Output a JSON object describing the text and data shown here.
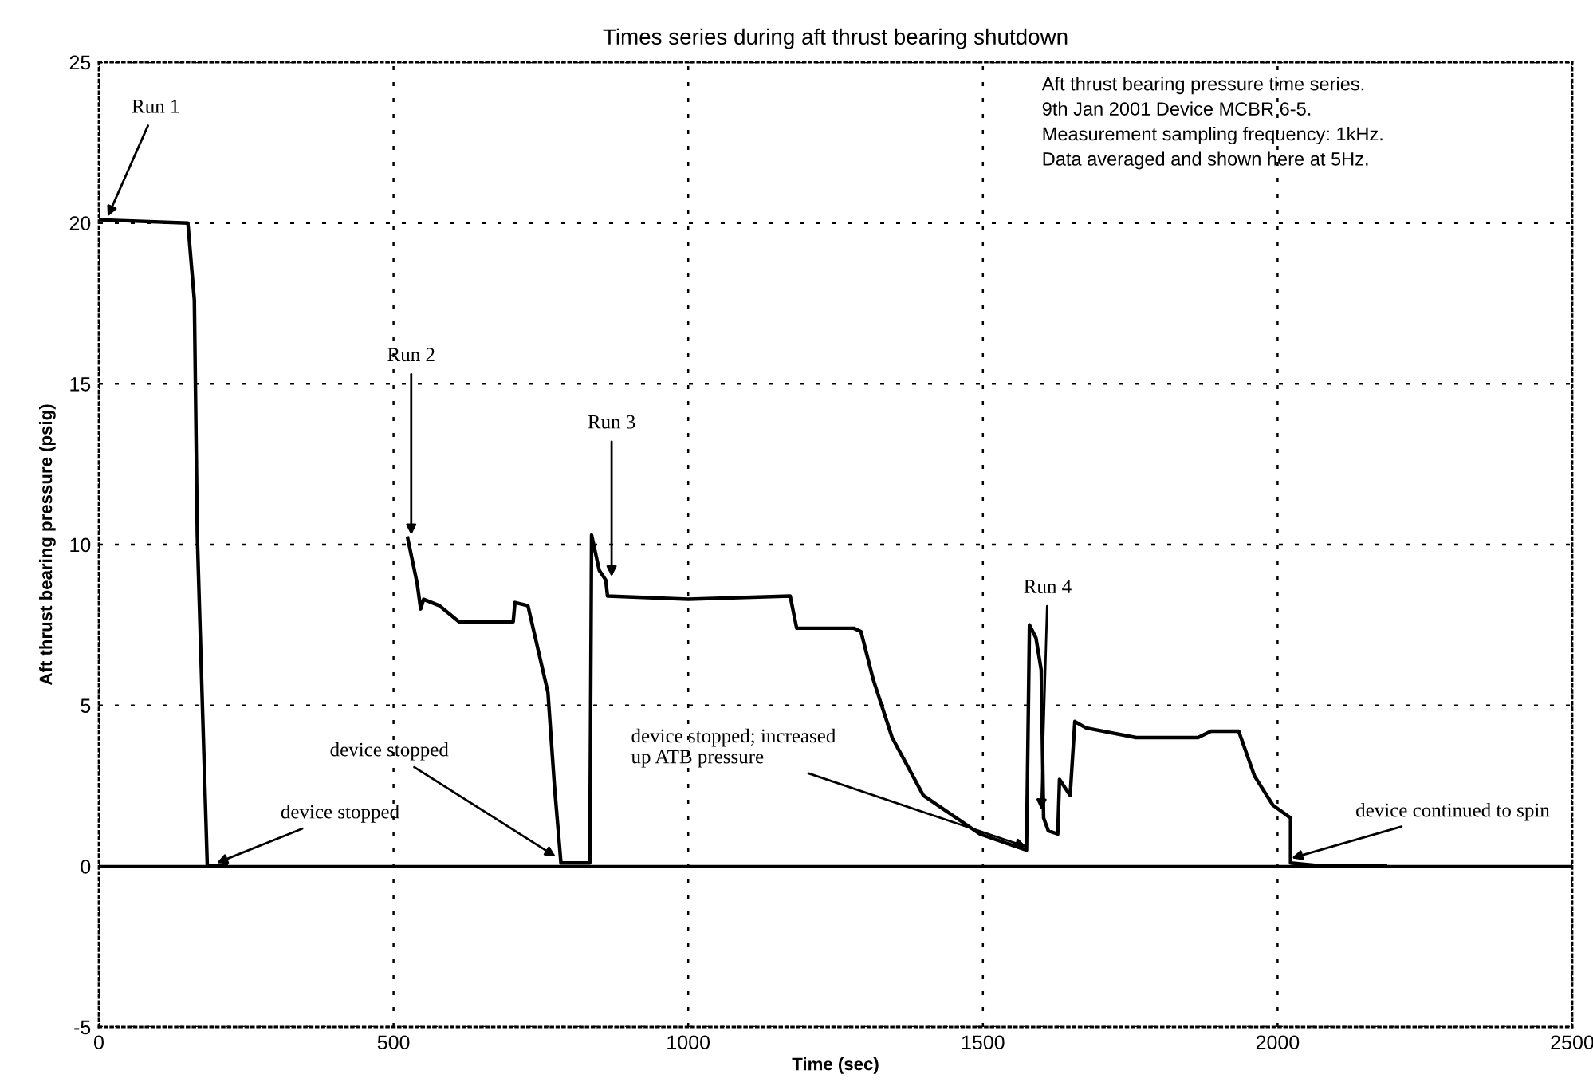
{
  "chart_data": {
    "type": "line",
    "title": "Times series during aft thrust bearing shutdown",
    "xlabel": "Time (sec)",
    "ylabel": "Aft thrust bearing pressure (psig)",
    "x": [
      0,
      151,
      162,
      167,
      176,
      184,
      216,
      370,
      524,
      540,
      546,
      551,
      578,
      611,
      703,
      706,
      728,
      762,
      773,
      784,
      833,
      836,
      849,
      860,
      863,
      1000,
      1173,
      1184,
      1281,
      1293,
      1314,
      1346,
      1399,
      1495,
      1574,
      1579,
      1590,
      1599,
      1603,
      1611,
      1627,
      1630,
      1648,
      1656,
      1675,
      1760,
      1865,
      1887,
      1934,
      1961,
      1992,
      2022,
      2022,
      2077,
      2183
    ],
    "series": [
      {
        "color": "#000000",
        "values": [
          20.1,
          20.0,
          17.6,
          10.3,
          4.8,
          0,
          0,
          null,
          10.2,
          8.8,
          8.0,
          8.3,
          8.1,
          7.6,
          7.6,
          8.2,
          8.1,
          5.4,
          2.5,
          0.1,
          0.1,
          10.3,
          9.2,
          8.9,
          8.4,
          8.3,
          8.4,
          7.4,
          7.4,
          7.3,
          5.8,
          4.0,
          2.2,
          1.0,
          0.5,
          7.5,
          7.1,
          6.1,
          1.5,
          1.1,
          1.0,
          2.7,
          2.2,
          4.5,
          4.3,
          4.0,
          4.0,
          4.2,
          4.2,
          2.8,
          1.9,
          1.5,
          0.1,
          0,
          0
        ]
      }
    ],
    "xlim": [
      0,
      2500
    ],
    "xticks": [
      0,
      500,
      1000,
      1500,
      2000,
      2500
    ],
    "ylim": [
      -5,
      25
    ],
    "yticks": [
      -5,
      0,
      5,
      10,
      15,
      20,
      25
    ],
    "grid": true,
    "line_style": "solid",
    "marker": "none",
    "legend": false,
    "annotations": [
      "Aft thrust bearing pressure time series.\n9th Jan 2001 Device MCBR 6-5.\nMeasurement sampling frequency: 1kHz.\nData averaged and shown here at 5Hz.",
      {
        "text": "Run 1",
        "x": 15,
        "y": 20.2
      },
      {
        "text": "Run 2",
        "x": 530,
        "y": 10.3
      },
      {
        "text": "Run 3",
        "x": 870,
        "y": 9.0
      },
      {
        "text": "Run 4",
        "x": 1599,
        "y": 1.75
      },
      {
        "text": "device stopped",
        "x": 200,
        "y": 0.1
      },
      {
        "text": "device stopped",
        "x": 775,
        "y": 0.3
      },
      {
        "text": "device stopped; increased\nup ATB pressure",
        "x": 1574,
        "y": 0.6
      },
      {
        "text": "device continued to spin",
        "x": 2024,
        "y": 0.25
      }
    ]
  }
}
